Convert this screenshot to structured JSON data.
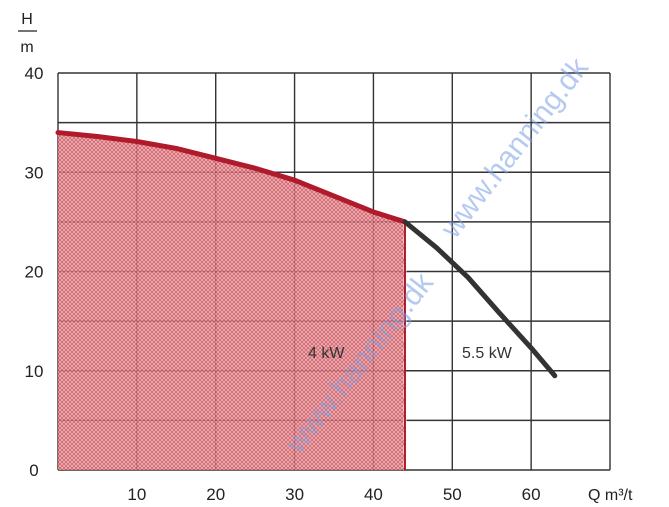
{
  "chart_data": {
    "type": "area",
    "xlabel": "Q m³/t",
    "ylabel": "H",
    "ylabel_unit": "m",
    "xlim": [
      0,
      70
    ],
    "ylim": [
      0,
      40
    ],
    "x_ticks": [
      "10",
      "20",
      "30",
      "40",
      "50",
      "60"
    ],
    "y_ticks": [
      "0",
      "10",
      "20",
      "30",
      "40"
    ],
    "grid": true,
    "series": [
      {
        "name": "4 kW",
        "color": "#b01a2a",
        "fill": "#d9474f",
        "x": [
          0,
          5,
          10,
          15,
          20,
          25,
          30,
          35,
          40,
          44
        ],
        "y": [
          34,
          33.6,
          33.1,
          32.4,
          31.4,
          30.4,
          29.2,
          27.6,
          26,
          25
        ]
      },
      {
        "name": "5.5 kW",
        "color": "#333333",
        "x": [
          44,
          48,
          52,
          56,
          60,
          63
        ],
        "y": [
          25,
          22.4,
          19.4,
          15.8,
          12.3,
          9.5
        ]
      }
    ],
    "cutoff_x": 44,
    "series_labels": [
      "4 kW",
      "5.5 kW"
    ],
    "watermark": "www.hanning.dk"
  }
}
